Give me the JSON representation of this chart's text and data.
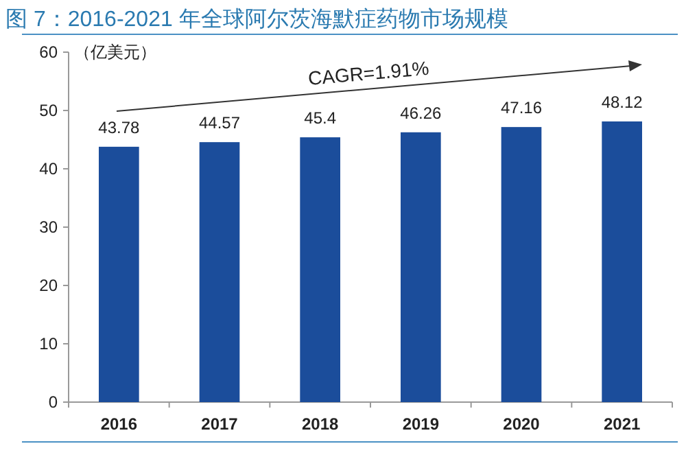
{
  "chart_data": {
    "type": "bar",
    "title": "图 7：2016-2021 年全球阿尔茨海默症药物市场规模",
    "ylabel": "（亿美元）",
    "categories": [
      "2016",
      "2017",
      "2018",
      "2019",
      "2020",
      "2021"
    ],
    "values": [
      43.78,
      44.57,
      45.4,
      46.26,
      47.16,
      48.12
    ],
    "color": "#1b4d9b",
    "ylim": [
      0,
      60
    ],
    "yticks": [
      0,
      10,
      20,
      30,
      40,
      50,
      60
    ],
    "data_labels": true,
    "grid": false,
    "annotations": [
      "CAGR=1.91%"
    ]
  }
}
